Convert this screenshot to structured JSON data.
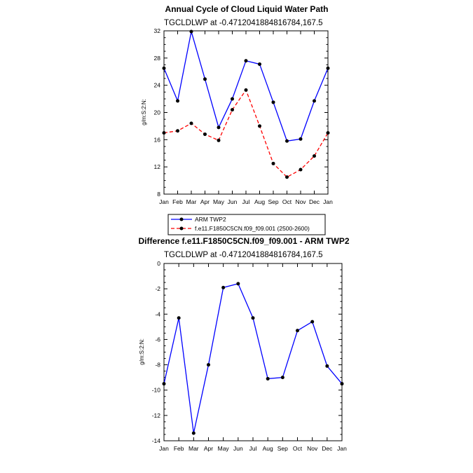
{
  "chart_data": [
    {
      "type": "line",
      "title": "Annual Cycle of Cloud Liquid Water Path",
      "subtitle": "TGCLDLWP at -0.4712041884816784,167.5",
      "ylabel": "g/m:S:2:N:",
      "categories": [
        "Jan",
        "Feb",
        "Mar",
        "Apr",
        "May",
        "Jun",
        "Jul",
        "Aug",
        "Sep",
        "Oct",
        "Nov",
        "Dec",
        "Jan"
      ],
      "ylim": [
        8,
        32
      ],
      "yticks": [
        "8",
        "12",
        "16",
        "20",
        "24",
        "28",
        "32"
      ],
      "grid": false,
      "legend_position": "bottom",
      "series": [
        {
          "name": "ARM TWP2",
          "color": "#0000ff",
          "dash": "solid",
          "values": [
            26.5,
            21.7,
            31.9,
            24.9,
            17.8,
            22.0,
            27.6,
            27.1,
            21.5,
            15.8,
            16.1,
            21.7,
            26.5
          ]
        },
        {
          "name": "f.e11.F1850C5CN.f09_f09.001 (2500-2600)",
          "color": "#ff0000",
          "dash": "dashed",
          "values": [
            17.0,
            17.3,
            18.4,
            16.8,
            15.9,
            20.4,
            23.3,
            18.0,
            12.5,
            10.5,
            11.6,
            13.6,
            17.0
          ]
        }
      ]
    },
    {
      "type": "line",
      "title": "Difference f.e11.F1850C5CN.f09_f09.001 - ARM TWP2",
      "subtitle": "TGCLDLWP at -0.4712041884816784,167.5",
      "ylabel": "g/m:S:2:N:",
      "categories": [
        "Jan",
        "Feb",
        "Mar",
        "Apr",
        "May",
        "Jun",
        "Jul",
        "Aug",
        "Sep",
        "Oct",
        "Nov",
        "Dec",
        "Jan"
      ],
      "ylim": [
        -14,
        0
      ],
      "yticks": [
        "-14",
        "-12",
        "-10",
        "-8",
        "-6",
        "-4",
        "-2",
        "0"
      ],
      "grid": false,
      "series": [
        {
          "color": "#0000ff",
          "dash": "solid",
          "values": [
            -9.5,
            -4.3,
            -13.4,
            -8.0,
            -1.9,
            -1.6,
            -4.3,
            -9.1,
            -9.0,
            -5.3,
            -4.6,
            -8.1,
            -9.5
          ]
        }
      ]
    }
  ]
}
